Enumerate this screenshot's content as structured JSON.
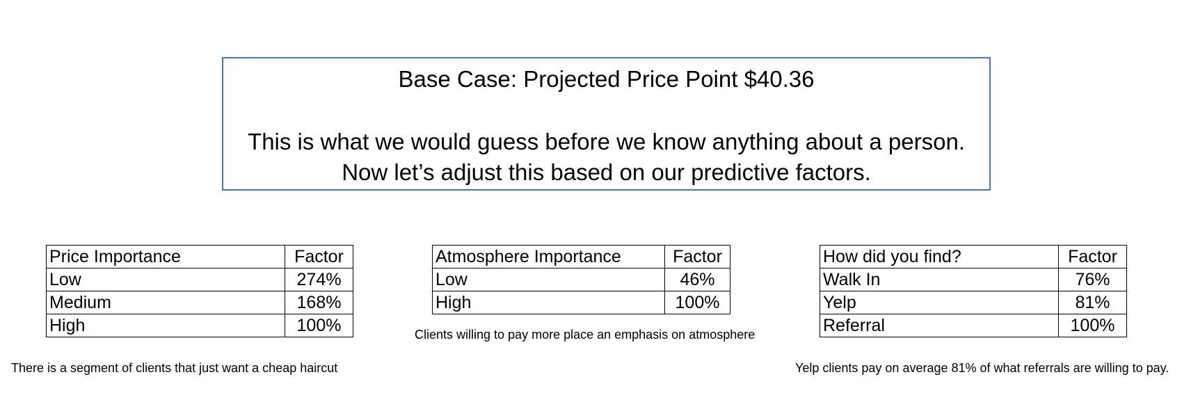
{
  "headline": {
    "title": "Base Case:  Projected Price Point $40.36",
    "line1": "This is what we would guess before we know anything about a person.",
    "line2": "Now let’s adjust this based on our predictive factors."
  },
  "tables": {
    "price": {
      "header": [
        "Price Importance",
        "Factor"
      ],
      "rows": [
        [
          "Low",
          "274%"
        ],
        [
          "Medium",
          "168%"
        ],
        [
          "High",
          "100%"
        ]
      ],
      "caption": "There is a segment of clients that just want a cheap haircut"
    },
    "atmosphere": {
      "header": [
        "Atmosphere Importance",
        "Factor"
      ],
      "rows": [
        [
          "Low",
          "46%"
        ],
        [
          "High",
          "100%"
        ]
      ],
      "caption": "Clients willing to pay more place an emphasis on atmosphere"
    },
    "find": {
      "header": [
        "How did you find?",
        "Factor"
      ],
      "rows": [
        [
          "Walk In",
          "76%"
        ],
        [
          "Yelp",
          "81%"
        ],
        [
          "Referral",
          "100%"
        ]
      ],
      "caption": "Yelp clients pay on average 81% of what referrals are willing to pay."
    }
  }
}
